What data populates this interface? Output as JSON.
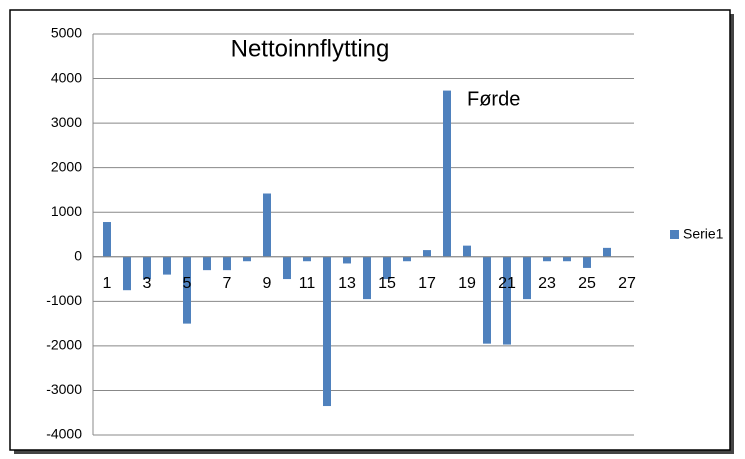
{
  "chart_data": {
    "type": "bar",
    "title": "Nettoinnflytting",
    "annotations": [
      "Førde"
    ],
    "categories": [
      "1",
      null,
      "3",
      null,
      "5",
      null,
      "7",
      null,
      "9",
      null,
      "11",
      null,
      "13",
      null,
      "15",
      null,
      "17",
      null,
      "19",
      null,
      "21",
      null,
      "23",
      null,
      "25",
      null,
      "27"
    ],
    "series": [
      {
        "name": "Serie1",
        "color": "#4f81bd",
        "values": [
          780,
          -750,
          -500,
          -400,
          -1500,
          -300,
          -300,
          -100,
          1420,
          -500,
          -100,
          -3350,
          -150,
          -950,
          -500,
          -100,
          150,
          3730,
          250,
          -1950,
          -1970,
          -950,
          -100,
          -100,
          -250,
          200,
          0
        ]
      }
    ],
    "ylim": [
      -4000,
      5000
    ],
    "yticks": [
      -4000,
      -3000,
      -2000,
      -1000,
      0,
      1000,
      2000,
      3000,
      4000,
      5000
    ],
    "grid": true,
    "legend": "right"
  }
}
